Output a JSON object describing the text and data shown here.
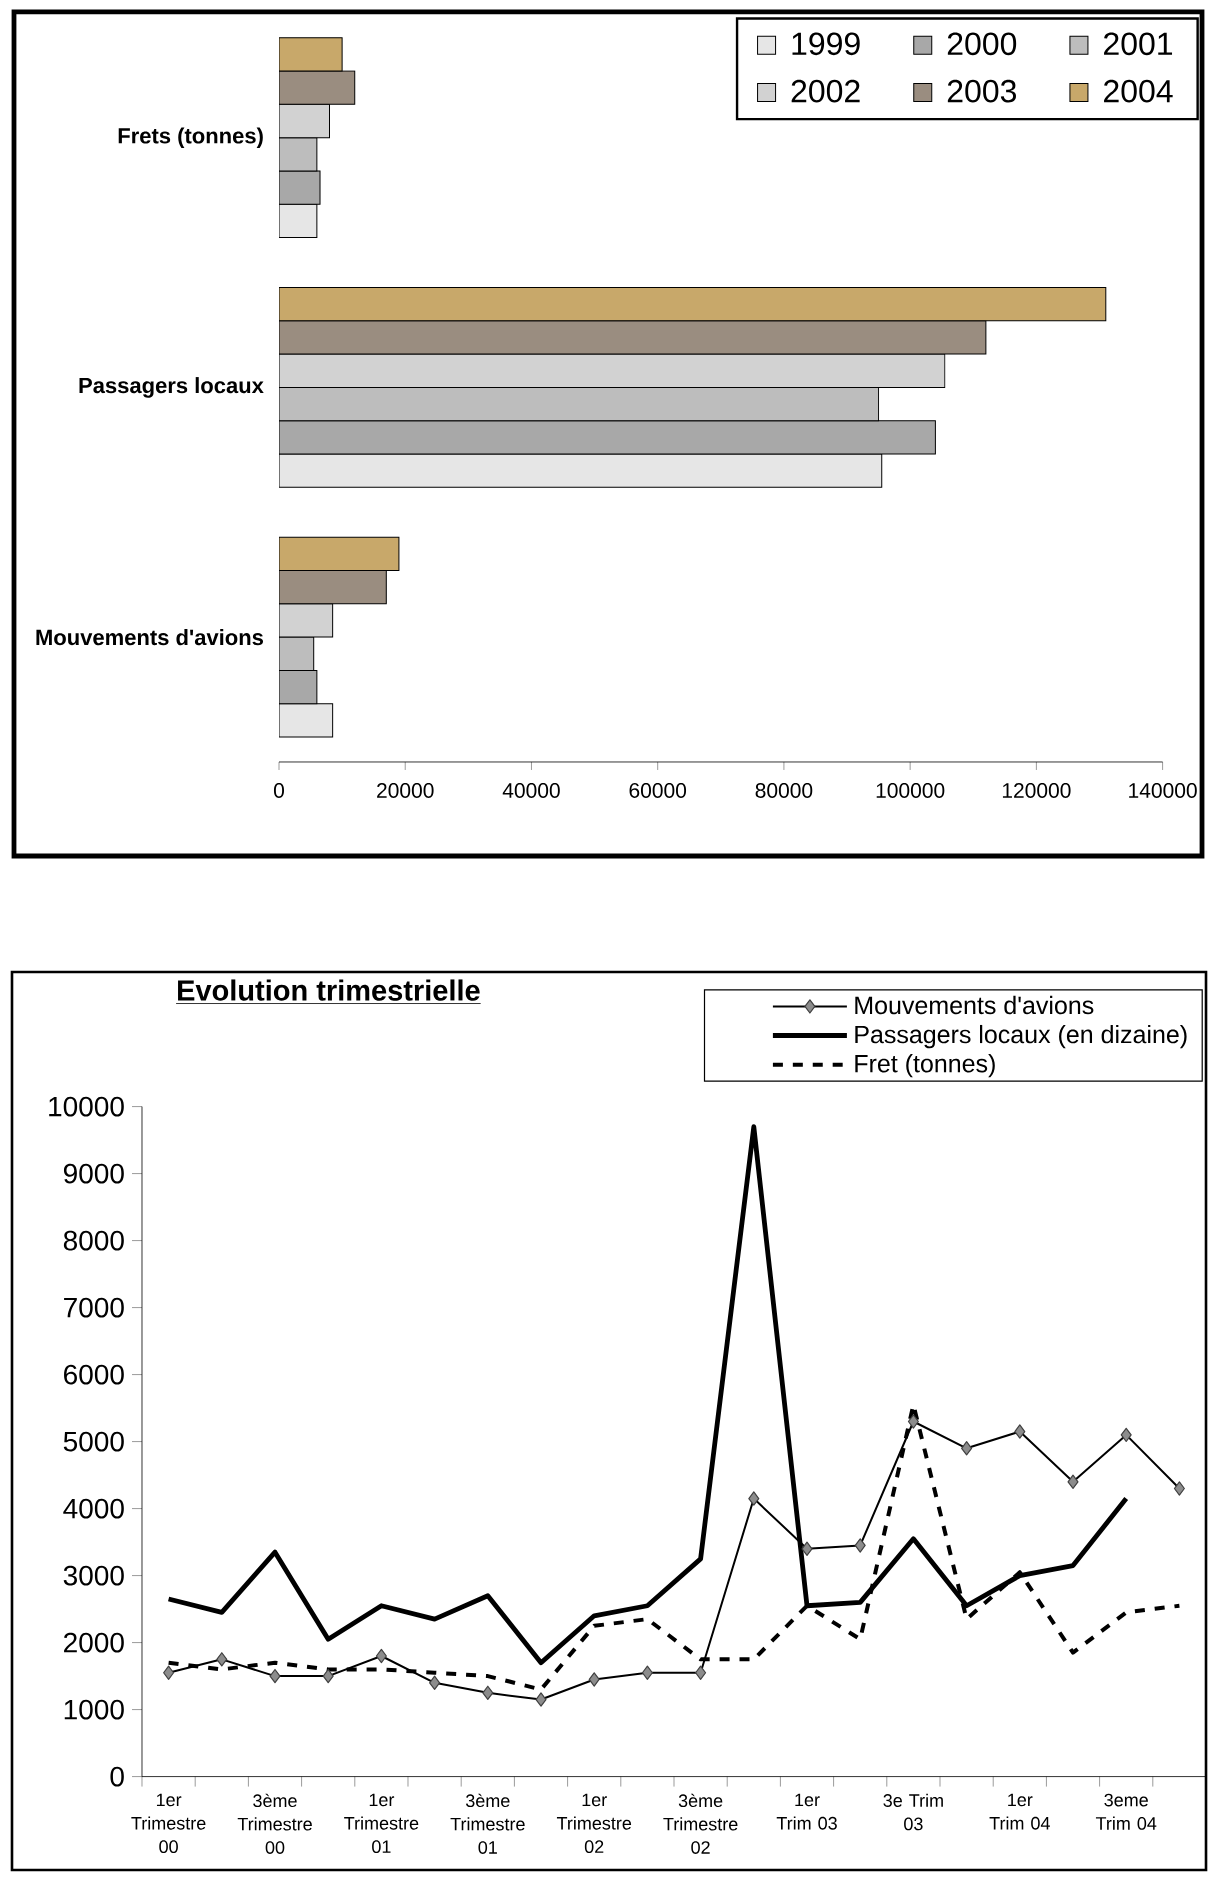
{
  "chart_data": [
    {
      "type": "bar",
      "orientation": "horizontal",
      "categories": [
        "Frets (tonnes)",
        "Passagers locaux",
        "Mouvements d'avions"
      ],
      "series": [
        {
          "name": "1999",
          "color": "#e6e6e6",
          "values": [
            6000,
            95500,
            8500
          ]
        },
        {
          "name": "2000",
          "color": "#a8a8a8",
          "values": [
            6500,
            104000,
            6000
          ]
        },
        {
          "name": "2001",
          "color": "#bdbdbd",
          "values": [
            6000,
            95000,
            5500
          ]
        },
        {
          "name": "2002",
          "color": "#d2d2d2",
          "values": [
            8000,
            105500,
            8500
          ]
        },
        {
          "name": "2003",
          "color": "#9a8d80",
          "values": [
            12000,
            112000,
            17000
          ]
        },
        {
          "name": "2004",
          "color": "#c8a86a",
          "values": [
            10000,
            131000,
            19000
          ]
        }
      ],
      "xlim": [
        0,
        140000
      ],
      "xticks": [
        0,
        20000,
        40000,
        60000,
        80000,
        100000,
        120000,
        140000
      ],
      "legend": "top right"
    },
    {
      "type": "line",
      "title": "Evolution trimestrielle",
      "categories": [
        "1er Trimestre 00",
        null,
        "3ème Trimestre 00",
        null,
        "1er Trimestre 01",
        null,
        "3ème Trimestre 01",
        null,
        "1er Trimestre 02",
        null,
        "3ème Trimestre 02",
        null,
        "1er Trim 03",
        null,
        "3e Trim 03",
        null,
        "1er Trim 04",
        null,
        "3eme Trim 04",
        null
      ],
      "series": [
        {
          "name": "Mouvements d'avions",
          "color": "#000000",
          "marker": "diamond",
          "values": [
            1550,
            1750,
            1500,
            1500,
            1800,
            1400,
            1250,
            1150,
            1450,
            1550,
            1550,
            4150,
            3400,
            3450,
            5300,
            4900,
            5150,
            4400,
            5100,
            4300
          ]
        },
        {
          "name": "Passagers locaux (en dizaine)",
          "color": "#000000",
          "values": [
            2650,
            2450,
            3350,
            2050,
            2550,
            2350,
            2700,
            1700,
            2400,
            2550,
            3250,
            9700,
            2550,
            2600,
            3550,
            2550,
            3000,
            3150,
            4150,
            null
          ]
        },
        {
          "name": "Fret (tonnes)",
          "color": "#000000",
          "line_style": "dashed",
          "values": [
            1700,
            1600,
            1700,
            1600,
            1600,
            1550,
            1500,
            1300,
            2250,
            2350,
            1750,
            1750,
            2550,
            2050,
            5550,
            2350,
            3050,
            1850,
            2450,
            2550
          ]
        }
      ],
      "ylim": [
        0,
        10000
      ],
      "yticks": [
        0,
        1000,
        2000,
        3000,
        4000,
        5000,
        6000,
        7000,
        8000,
        9000,
        10000
      ],
      "legend": "top right"
    }
  ]
}
